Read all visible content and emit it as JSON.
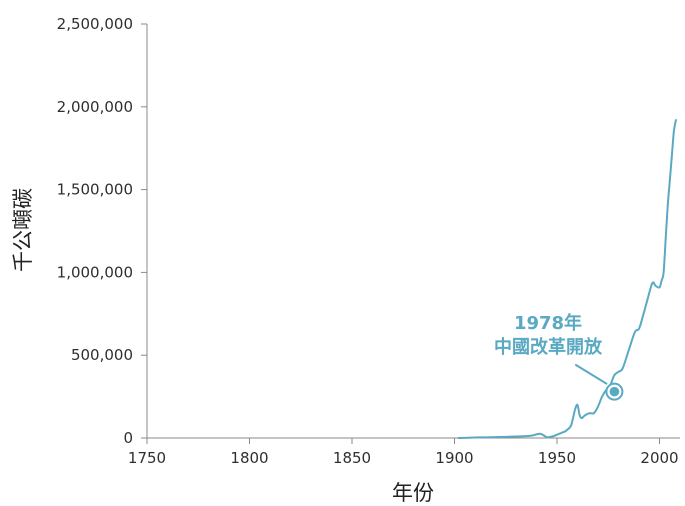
{
  "chart_data": {
    "type": "line",
    "title": "",
    "xlabel": "年份",
    "ylabel": "千公噸碳",
    "xlim": [
      1750,
      2010
    ],
    "ylim": [
      0,
      2500000
    ],
    "x_ticks": [
      1750,
      1800,
      1850,
      1900,
      1950,
      2000
    ],
    "x_tick_labels": [
      "1750",
      "1800",
      "1850",
      "1900",
      "1950",
      "2000"
    ],
    "y_ticks": [
      0,
      500000,
      1000000,
      1500000,
      2000000,
      2500000
    ],
    "y_tick_labels": [
      "0",
      "500,000",
      "1,000,000",
      "1,500,000",
      "2,000,000",
      "2,500,000"
    ],
    "grid": false,
    "legend": "none",
    "color": "#5aa9c2",
    "series": [
      {
        "x": [
          1902,
          1905,
          1910,
          1915,
          1920,
          1925,
          1930,
          1935,
          1938,
          1940,
          1942,
          1944,
          1945,
          1946,
          1948,
          1950,
          1952,
          1954,
          1955,
          1956,
          1957,
          1958,
          1959,
          1960,
          1961,
          1962,
          1963,
          1964,
          1966,
          1968,
          1970,
          1972,
          1974,
          1976,
          1978,
          1980,
          1982,
          1985,
          1988,
          1990,
          1992,
          1994,
          1996,
          1997,
          1998,
          2000,
          2001,
          2002,
          2003,
          2004,
          2005,
          2006,
          2007,
          2008
        ],
        "values": [
          0,
          1000,
          3000,
          4000,
          5000,
          7000,
          9000,
          11000,
          15000,
          22000,
          25000,
          12000,
          5000,
          5000,
          10000,
          20000,
          30000,
          40000,
          50000,
          60000,
          80000,
          130000,
          180000,
          200000,
          140000,
          120000,
          130000,
          140000,
          150000,
          150000,
          190000,
          250000,
          290000,
          320000,
          380000,
          400000,
          420000,
          530000,
          640000,
          660000,
          740000,
          830000,
          920000,
          940000,
          920000,
          910000,
          950000,
          1000000,
          1200000,
          1400000,
          1550000,
          1700000,
          1850000,
          1920000
        ]
      }
    ],
    "annotation": {
      "x": 1978,
      "y": 280000,
      "label_lines": [
        "1978年",
        "中國改革開放"
      ]
    }
  }
}
